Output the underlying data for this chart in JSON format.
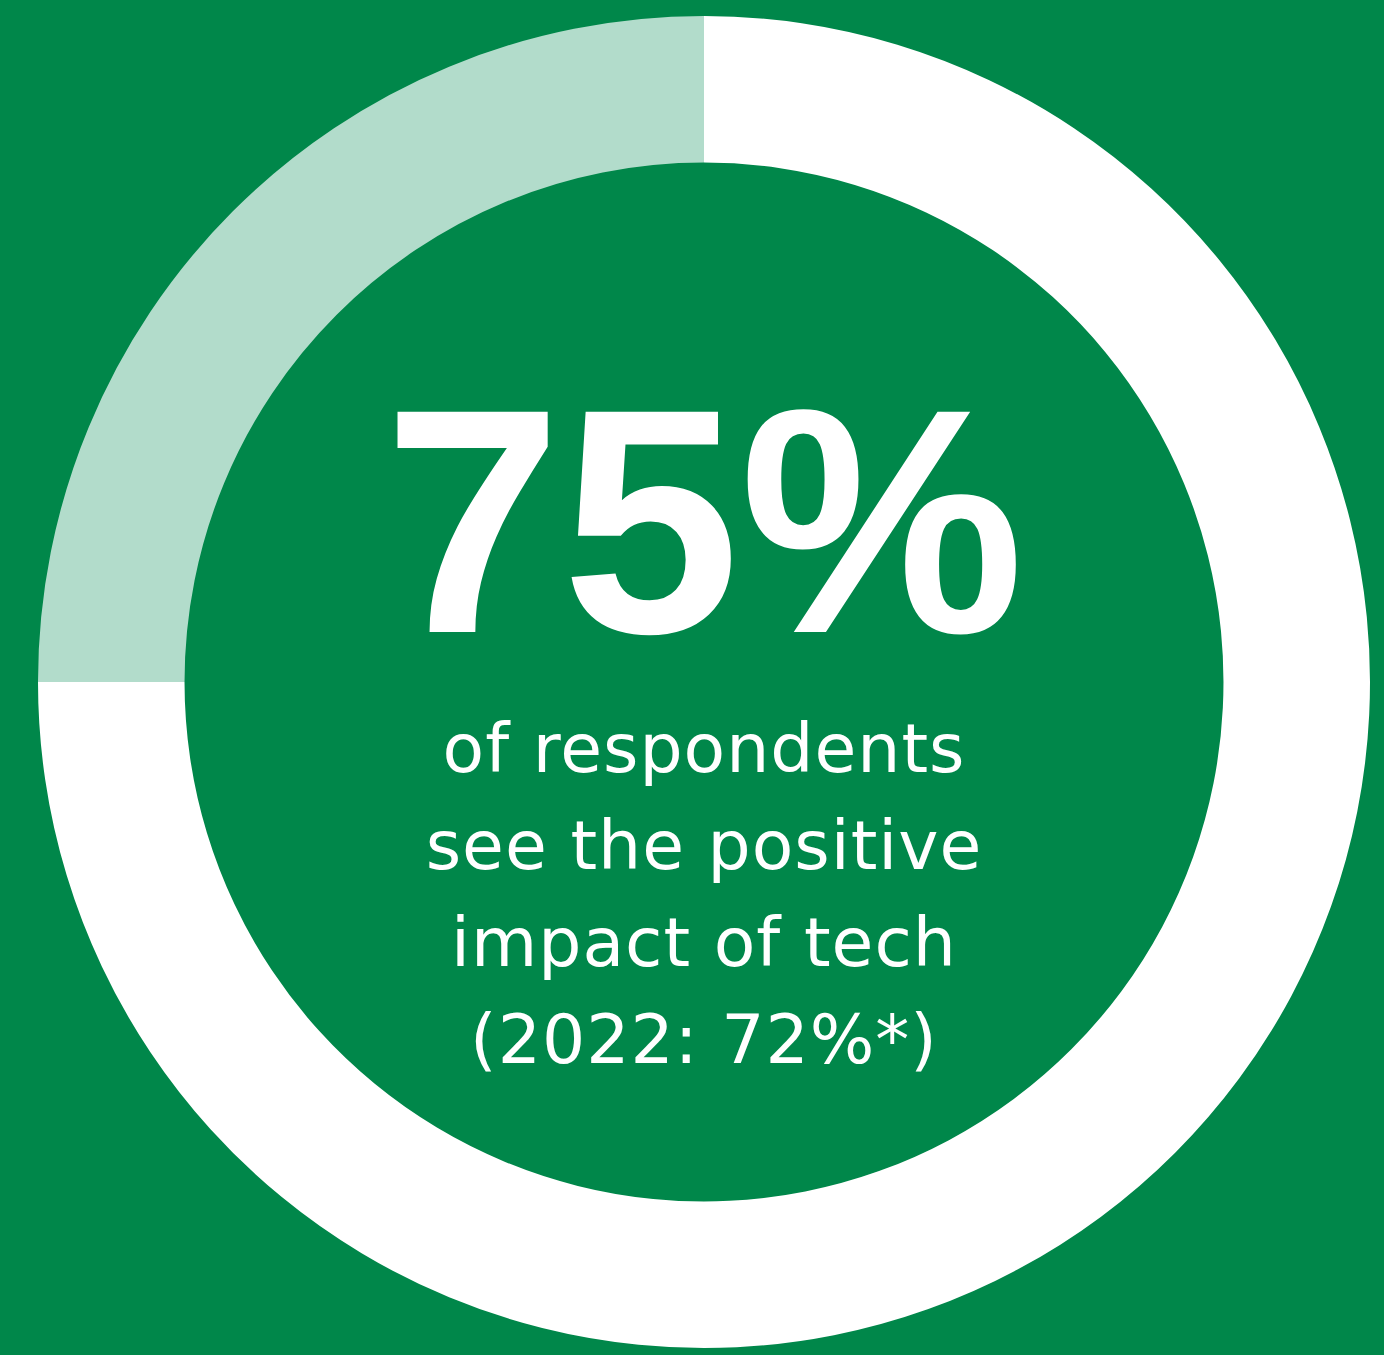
{
  "chart_data": {
    "type": "donut",
    "categories": [
      null,
      null
    ],
    "values": [
      75,
      25
    ],
    "colors": [
      "#ffffff",
      "#b2dccb"
    ],
    "value_labels": [
      "75%",
      null
    ],
    "subtitle": "of respondents\nsee the positive\nimpact of tech\n(2022: 72%*)",
    "legend": false
  }
}
